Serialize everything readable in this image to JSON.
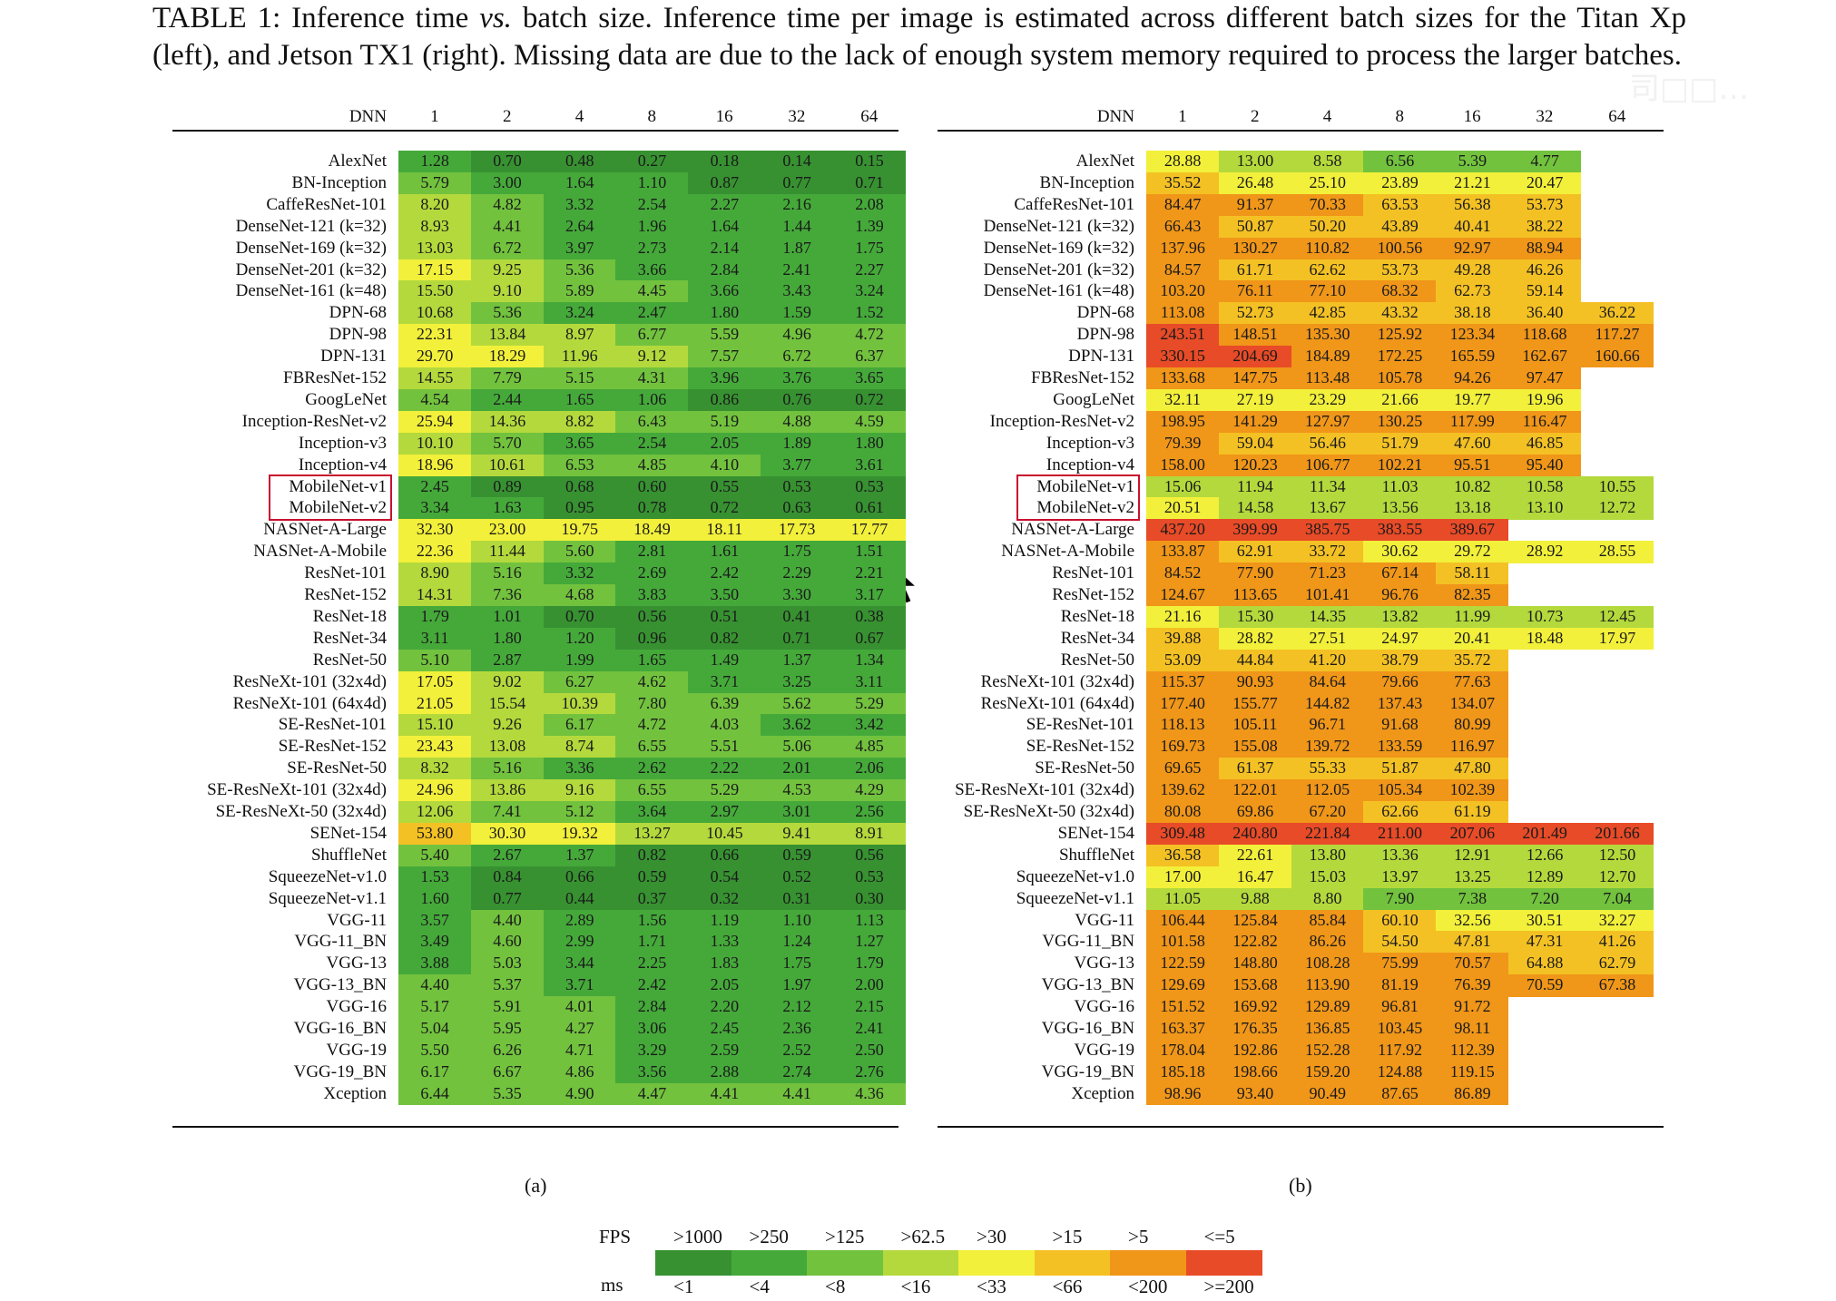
{
  "caption": {
    "table_label": "TABLE 1: Inference time ",
    "vs": "vs.",
    "text": " batch size. Inference time per image is estimated across different batch sizes for the Titan Xp (left), and Jetson TX1 (right). Missing data are due to the lack of enough system memory required to process the larger batches."
  },
  "header": {
    "dnn": "DNN",
    "batches": [
      "1",
      "2",
      "4",
      "8",
      "16",
      "32",
      "64"
    ]
  },
  "networks": [
    "AlexNet",
    "BN-Inception",
    "CaffeResNet-101",
    "DenseNet-121 (k=32)",
    "DenseNet-169 (k=32)",
    "DenseNet-201 (k=32)",
    "DenseNet-161 (k=48)",
    "DPN-68",
    "DPN-98",
    "DPN-131",
    "FBResNet-152",
    "GoogLeNet",
    "Inception-ResNet-v2",
    "Inception-v3",
    "Inception-v4",
    "MobileNet-v1",
    "MobileNet-v2",
    "NASNet-A-Large",
    "NASNet-A-Mobile",
    "ResNet-101",
    "ResNet-152",
    "ResNet-18",
    "ResNet-34",
    "ResNet-50",
    "ResNeXt-101 (32x4d)",
    "ResNeXt-101 (64x4d)",
    "SE-ResNet-101",
    "SE-ResNet-152",
    "SE-ResNet-50",
    "SE-ResNeXt-101 (32x4d)",
    "SE-ResNeXt-50 (32x4d)",
    "SENet-154",
    "ShuffleNet",
    "SqueezeNet-v1.0",
    "SqueezeNet-v1.1",
    "VGG-11",
    "VGG-11_BN",
    "VGG-13",
    "VGG-13_BN",
    "VGG-16",
    "VGG-16_BN",
    "VGG-19",
    "VGG-19_BN",
    "Xception"
  ],
  "highlighted": [
    "MobileNet-v1",
    "MobileNet-v2"
  ],
  "titan_xp": [
    [
      "1.28",
      "0.70",
      "0.48",
      "0.27",
      "0.18",
      "0.14",
      "0.15"
    ],
    [
      "5.79",
      "3.00",
      "1.64",
      "1.10",
      "0.87",
      "0.77",
      "0.71"
    ],
    [
      "8.20",
      "4.82",
      "3.32",
      "2.54",
      "2.27",
      "2.16",
      "2.08"
    ],
    [
      "8.93",
      "4.41",
      "2.64",
      "1.96",
      "1.64",
      "1.44",
      "1.39"
    ],
    [
      "13.03",
      "6.72",
      "3.97",
      "2.73",
      "2.14",
      "1.87",
      "1.75"
    ],
    [
      "17.15",
      "9.25",
      "5.36",
      "3.66",
      "2.84",
      "2.41",
      "2.27"
    ],
    [
      "15.50",
      "9.10",
      "5.89",
      "4.45",
      "3.66",
      "3.43",
      "3.24"
    ],
    [
      "10.68",
      "5.36",
      "3.24",
      "2.47",
      "1.80",
      "1.59",
      "1.52"
    ],
    [
      "22.31",
      "13.84",
      "8.97",
      "6.77",
      "5.59",
      "4.96",
      "4.72"
    ],
    [
      "29.70",
      "18.29",
      "11.96",
      "9.12",
      "7.57",
      "6.72",
      "6.37"
    ],
    [
      "14.55",
      "7.79",
      "5.15",
      "4.31",
      "3.96",
      "3.76",
      "3.65"
    ],
    [
      "4.54",
      "2.44",
      "1.65",
      "1.06",
      "0.86",
      "0.76",
      "0.72"
    ],
    [
      "25.94",
      "14.36",
      "8.82",
      "6.43",
      "5.19",
      "4.88",
      "4.59"
    ],
    [
      "10.10",
      "5.70",
      "3.65",
      "2.54",
      "2.05",
      "1.89",
      "1.80"
    ],
    [
      "18.96",
      "10.61",
      "6.53",
      "4.85",
      "4.10",
      "3.77",
      "3.61"
    ],
    [
      "2.45",
      "0.89",
      "0.68",
      "0.60",
      "0.55",
      "0.53",
      "0.53"
    ],
    [
      "3.34",
      "1.63",
      "0.95",
      "0.78",
      "0.72",
      "0.63",
      "0.61"
    ],
    [
      "32.30",
      "23.00",
      "19.75",
      "18.49",
      "18.11",
      "17.73",
      "17.77"
    ],
    [
      "22.36",
      "11.44",
      "5.60",
      "2.81",
      "1.61",
      "1.75",
      "1.51"
    ],
    [
      "8.90",
      "5.16",
      "3.32",
      "2.69",
      "2.42",
      "2.29",
      "2.21"
    ],
    [
      "14.31",
      "7.36",
      "4.68",
      "3.83",
      "3.50",
      "3.30",
      "3.17"
    ],
    [
      "1.79",
      "1.01",
      "0.70",
      "0.56",
      "0.51",
      "0.41",
      "0.38"
    ],
    [
      "3.11",
      "1.80",
      "1.20",
      "0.96",
      "0.82",
      "0.71",
      "0.67"
    ],
    [
      "5.10",
      "2.87",
      "1.99",
      "1.65",
      "1.49",
      "1.37",
      "1.34"
    ],
    [
      "17.05",
      "9.02",
      "6.27",
      "4.62",
      "3.71",
      "3.25",
      "3.11"
    ],
    [
      "21.05",
      "15.54",
      "10.39",
      "7.80",
      "6.39",
      "5.62",
      "5.29"
    ],
    [
      "15.10",
      "9.26",
      "6.17",
      "4.72",
      "4.03",
      "3.62",
      "3.42"
    ],
    [
      "23.43",
      "13.08",
      "8.74",
      "6.55",
      "5.51",
      "5.06",
      "4.85"
    ],
    [
      "8.32",
      "5.16",
      "3.36",
      "2.62",
      "2.22",
      "2.01",
      "2.06"
    ],
    [
      "24.96",
      "13.86",
      "9.16",
      "6.55",
      "5.29",
      "4.53",
      "4.29"
    ],
    [
      "12.06",
      "7.41",
      "5.12",
      "3.64",
      "2.97",
      "3.01",
      "2.56"
    ],
    [
      "53.80",
      "30.30",
      "19.32",
      "13.27",
      "10.45",
      "9.41",
      "8.91"
    ],
    [
      "5.40",
      "2.67",
      "1.37",
      "0.82",
      "0.66",
      "0.59",
      "0.56"
    ],
    [
      "1.53",
      "0.84",
      "0.66",
      "0.59",
      "0.54",
      "0.52",
      "0.53"
    ],
    [
      "1.60",
      "0.77",
      "0.44",
      "0.37",
      "0.32",
      "0.31",
      "0.30"
    ],
    [
      "3.57",
      "4.40",
      "2.89",
      "1.56",
      "1.19",
      "1.10",
      "1.13"
    ],
    [
      "3.49",
      "4.60",
      "2.99",
      "1.71",
      "1.33",
      "1.24",
      "1.27"
    ],
    [
      "3.88",
      "5.03",
      "3.44",
      "2.25",
      "1.83",
      "1.75",
      "1.79"
    ],
    [
      "4.40",
      "5.37",
      "3.71",
      "2.42",
      "2.05",
      "1.97",
      "2.00"
    ],
    [
      "5.17",
      "5.91",
      "4.01",
      "2.84",
      "2.20",
      "2.12",
      "2.15"
    ],
    [
      "5.04",
      "5.95",
      "4.27",
      "3.06",
      "2.45",
      "2.36",
      "2.41"
    ],
    [
      "5.50",
      "6.26",
      "4.71",
      "3.29",
      "2.59",
      "2.52",
      "2.50"
    ],
    [
      "6.17",
      "6.67",
      "4.86",
      "3.56",
      "2.88",
      "2.74",
      "2.76"
    ],
    [
      "6.44",
      "5.35",
      "4.90",
      "4.47",
      "4.41",
      "4.41",
      "4.36"
    ]
  ],
  "jetson_tx1": [
    [
      "28.88",
      "13.00",
      "8.58",
      "6.56",
      "5.39",
      "4.77",
      ""
    ],
    [
      "35.52",
      "26.48",
      "25.10",
      "23.89",
      "21.21",
      "20.47",
      ""
    ],
    [
      "84.47",
      "91.37",
      "70.33",
      "63.53",
      "56.38",
      "53.73",
      ""
    ],
    [
      "66.43",
      "50.87",
      "50.20",
      "43.89",
      "40.41",
      "38.22",
      ""
    ],
    [
      "137.96",
      "130.27",
      "110.82",
      "100.56",
      "92.97",
      "88.94",
      ""
    ],
    [
      "84.57",
      "61.71",
      "62.62",
      "53.73",
      "49.28",
      "46.26",
      ""
    ],
    [
      "103.20",
      "76.11",
      "77.10",
      "68.32",
      "62.73",
      "59.14",
      ""
    ],
    [
      "113.08",
      "52.73",
      "42.85",
      "43.32",
      "38.18",
      "36.40",
      "36.22"
    ],
    [
      "243.51",
      "148.51",
      "135.30",
      "125.92",
      "123.34",
      "118.68",
      "117.27"
    ],
    [
      "330.15",
      "204.69",
      "184.89",
      "172.25",
      "165.59",
      "162.67",
      "160.66"
    ],
    [
      "133.68",
      "147.75",
      "113.48",
      "105.78",
      "94.26",
      "97.47",
      ""
    ],
    [
      "32.11",
      "27.19",
      "23.29",
      "21.66",
      "19.77",
      "19.96",
      ""
    ],
    [
      "198.95",
      "141.29",
      "127.97",
      "130.25",
      "117.99",
      "116.47",
      ""
    ],
    [
      "79.39",
      "59.04",
      "56.46",
      "51.79",
      "47.60",
      "46.85",
      ""
    ],
    [
      "158.00",
      "120.23",
      "106.77",
      "102.21",
      "95.51",
      "95.40",
      ""
    ],
    [
      "15.06",
      "11.94",
      "11.34",
      "11.03",
      "10.82",
      "10.58",
      "10.55"
    ],
    [
      "20.51",
      "14.58",
      "13.67",
      "13.56",
      "13.18",
      "13.10",
      "12.72"
    ],
    [
      "437.20",
      "399.99",
      "385.75",
      "383.55",
      "389.67",
      "",
      ""
    ],
    [
      "133.87",
      "62.91",
      "33.72",
      "30.62",
      "29.72",
      "28.92",
      "28.55"
    ],
    [
      "84.52",
      "77.90",
      "71.23",
      "67.14",
      "58.11",
      "",
      ""
    ],
    [
      "124.67",
      "113.65",
      "101.41",
      "96.76",
      "82.35",
      "",
      ""
    ],
    [
      "21.16",
      "15.30",
      "14.35",
      "13.82",
      "11.99",
      "10.73",
      "12.45"
    ],
    [
      "39.88",
      "28.82",
      "27.51",
      "24.97",
      "20.41",
      "18.48",
      "17.97"
    ],
    [
      "53.09",
      "44.84",
      "41.20",
      "38.79",
      "35.72",
      "",
      ""
    ],
    [
      "115.37",
      "90.93",
      "84.64",
      "79.66",
      "77.63",
      "",
      ""
    ],
    [
      "177.40",
      "155.77",
      "144.82",
      "137.43",
      "134.07",
      "",
      ""
    ],
    [
      "118.13",
      "105.11",
      "96.71",
      "91.68",
      "80.99",
      "",
      ""
    ],
    [
      "169.73",
      "155.08",
      "139.72",
      "133.59",
      "116.97",
      "",
      ""
    ],
    [
      "69.65",
      "61.37",
      "55.33",
      "51.87",
      "47.80",
      "",
      ""
    ],
    [
      "139.62",
      "122.01",
      "112.05",
      "105.34",
      "102.39",
      "",
      ""
    ],
    [
      "80.08",
      "69.86",
      "67.20",
      "62.66",
      "61.19",
      "",
      ""
    ],
    [
      "309.48",
      "240.80",
      "221.84",
      "211.00",
      "207.06",
      "201.49",
      "201.66"
    ],
    [
      "36.58",
      "22.61",
      "13.80",
      "13.36",
      "12.91",
      "12.66",
      "12.50"
    ],
    [
      "17.00",
      "16.47",
      "15.03",
      "13.97",
      "13.25",
      "12.89",
      "12.70"
    ],
    [
      "11.05",
      "9.88",
      "8.80",
      "7.90",
      "7.38",
      "7.20",
      "7.04"
    ],
    [
      "106.44",
      "125.84",
      "85.84",
      "60.10",
      "32.56",
      "30.51",
      "32.27"
    ],
    [
      "101.58",
      "122.82",
      "86.26",
      "54.50",
      "47.81",
      "47.31",
      "41.26"
    ],
    [
      "122.59",
      "148.80",
      "108.28",
      "75.99",
      "70.57",
      "64.88",
      "62.79"
    ],
    [
      "129.69",
      "153.68",
      "113.90",
      "81.19",
      "76.39",
      "70.59",
      "67.38"
    ],
    [
      "151.52",
      "169.92",
      "129.89",
      "96.81",
      "91.72",
      "",
      ""
    ],
    [
      "163.37",
      "176.35",
      "136.85",
      "103.45",
      "98.11",
      "",
      ""
    ],
    [
      "178.04",
      "192.86",
      "152.28",
      "117.92",
      "112.39",
      "",
      ""
    ],
    [
      "185.18",
      "198.66",
      "159.20",
      "124.88",
      "119.15",
      "",
      ""
    ],
    [
      "98.96",
      "93.40",
      "90.49",
      "87.65",
      "86.89",
      "",
      ""
    ]
  ],
  "sublabels": {
    "a": "(a)",
    "b": "(b)"
  },
  "legend": {
    "fps_title": "FPS",
    "ms_title": "ms",
    "fps": [
      ">1000",
      ">250",
      ">125",
      ">62.5",
      ">30",
      ">15",
      ">5",
      "<=5"
    ],
    "ms": [
      "<1",
      "<4",
      "<8",
      "<16",
      "<33",
      "<66",
      "<200",
      ">=200"
    ],
    "colors": [
      "#379131",
      "#45a93a",
      "#72c23e",
      "#b4d93c",
      "#f2f03a",
      "#f4c124",
      "#f09619",
      "#e84b27"
    ],
    "thresholds_ms": [
      1,
      4,
      8,
      16,
      33,
      66,
      200
    ]
  },
  "cursor_icon": "mouse-pointer-icon",
  "watermark": "司□□…"
}
